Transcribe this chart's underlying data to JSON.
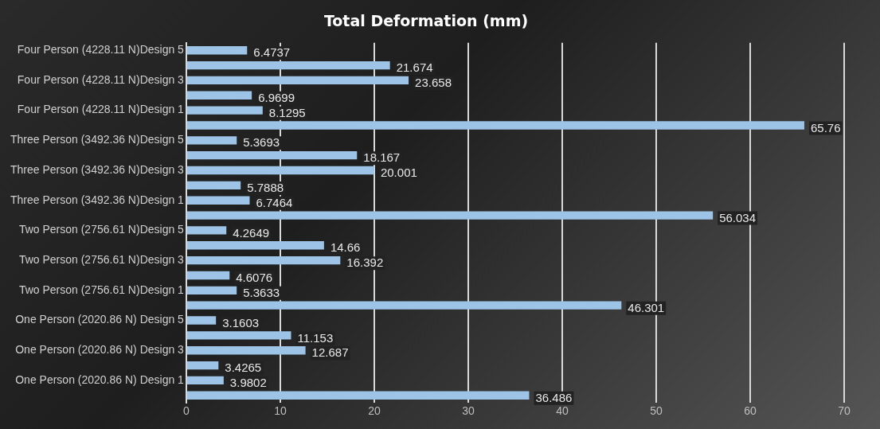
{
  "chart_data": {
    "type": "bar",
    "orientation": "horizontal",
    "title": "Total Deformation (mm)",
    "categories": [
      "Four Person (4228.11 N)Design 5",
      null,
      "Four Person (4228.11 N)Design 3",
      null,
      "Four Person (4228.11 N)Design 1",
      null,
      "Three Person (3492.36 N)Design 5",
      null,
      "Three Person (3492.36 N)Design 3",
      null,
      "Three Person (3492.36 N)Design 1",
      null,
      "Two Person (2756.61 N)Design 5",
      null,
      "Two Person (2756.61 N)Design 3",
      null,
      "Two Person (2756.61 N)Design 1",
      null,
      "One Person (2020.86 N) Design 5",
      null,
      "One Person (2020.86 N) Design 3",
      null,
      "One Person (2020.86 N) Design 1",
      null
    ],
    "values": [
      6.4737,
      21.674,
      23.658,
      6.9699,
      8.1295,
      65.76,
      5.3693,
      18.167,
      20.001,
      5.7888,
      6.7464,
      56.034,
      4.2649,
      14.66,
      16.392,
      4.6076,
      5.3633,
      46.301,
      3.1603,
      11.153,
      12.687,
      3.4265,
      3.9802,
      36.486
    ],
    "color": "#9dc3e6",
    "xlim": [
      0,
      70
    ],
    "xticks": [
      0,
      10,
      20,
      30,
      40,
      50,
      60,
      70
    ],
    "grid": "x",
    "data_labels": true
  }
}
